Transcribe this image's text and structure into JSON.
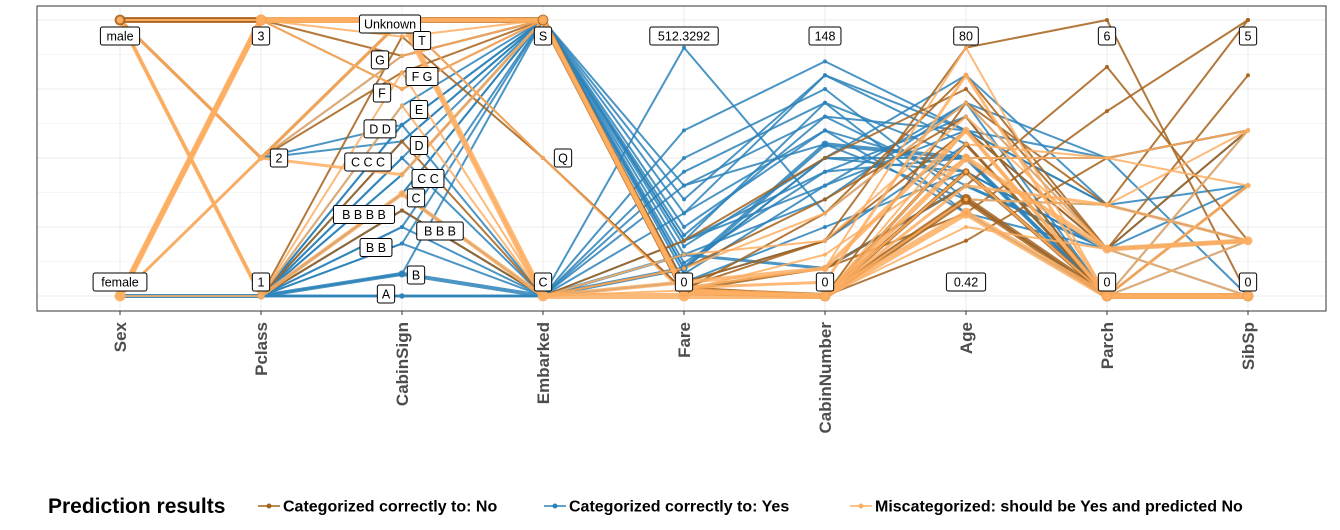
{
  "chart_data": {
    "type": "parallel-coordinates",
    "axes": [
      "Sex",
      "Pclass",
      "CabinSign",
      "Embarked",
      "Fare",
      "CabinNumber",
      "Age",
      "Parch",
      "SibSp"
    ],
    "axis_levels": {
      "Sex": [
        {
          "label": "male",
          "v": 1.0
        },
        {
          "label": "female",
          "v": 0.0
        }
      ],
      "Pclass": [
        {
          "label": "3",
          "v": 1.0
        },
        {
          "label": "2",
          "v": 0.5
        },
        {
          "label": "1",
          "v": 0.0
        }
      ],
      "CabinSign": [
        {
          "label": "Unknown",
          "v": 1.0
        },
        {
          "label": "T",
          "v": 0.94
        },
        {
          "label": "G",
          "v": 0.87
        },
        {
          "label": "F G",
          "v": 0.81
        },
        {
          "label": "F",
          "v": 0.75
        },
        {
          "label": "E",
          "v": 0.69
        },
        {
          "label": "D D",
          "v": 0.62
        },
        {
          "label": "D",
          "v": 0.56
        },
        {
          "label": "C C C",
          "v": 0.5
        },
        {
          "label": "C C",
          "v": 0.44
        },
        {
          "label": "C",
          "v": 0.37
        },
        {
          "label": "B B B B",
          "v": 0.31
        },
        {
          "label": "B B B",
          "v": 0.25
        },
        {
          "label": "B B",
          "v": 0.19
        },
        {
          "label": "B",
          "v": 0.08
        },
        {
          "label": "A",
          "v": 0.0
        }
      ],
      "Embarked": [
        {
          "label": "S",
          "v": 1.0
        },
        {
          "label": "Q",
          "v": 0.5
        },
        {
          "label": "C",
          "v": 0.0
        }
      ],
      "Fare": [
        {
          "label": "512.3292",
          "v": 1.0
        },
        {
          "label": "0",
          "v": 0.0
        }
      ],
      "CabinNumber": [
        {
          "label": "148",
          "v": 1.0
        },
        {
          "label": "0",
          "v": 0.0
        }
      ],
      "Age": [
        {
          "label": "80",
          "v": 1.0
        },
        {
          "label": "0.42",
          "v": 0.0
        }
      ],
      "Parch": [
        {
          "label": "6",
          "v": 1.0
        },
        {
          "label": "0",
          "v": 0.0
        }
      ],
      "SibSp": [
        {
          "label": "5",
          "v": 1.0
        },
        {
          "label": "0",
          "v": 0.0
        }
      ]
    },
    "series": [
      {
        "name": "Categorized correctly to: No",
        "color": "#a6611a"
      },
      {
        "name": "Categorized correctly to: Yes",
        "color": "#2b83ba"
      },
      {
        "name": "Miscategorized: should be Yes and predicted No",
        "color": "#fdae61"
      }
    ],
    "lines": [
      {
        "s": 0,
        "w": 6,
        "v": [
          1,
          1,
          1,
          1,
          0.02,
          0,
          0.35,
          0,
          0
        ]
      },
      {
        "s": 0,
        "w": 4,
        "v": [
          1,
          1,
          1,
          1,
          0.01,
          0,
          0.45,
          0,
          0
        ]
      },
      {
        "s": 0,
        "w": 3,
        "v": [
          1,
          0.5,
          1,
          1,
          0.03,
          0,
          0.55,
          0,
          0
        ]
      },
      {
        "s": 0,
        "w": 2,
        "v": [
          1,
          0.5,
          0.81,
          1,
          0.05,
          0.2,
          0.6,
          0.17,
          0.2
        ]
      },
      {
        "s": 0,
        "w": 2,
        "v": [
          1,
          1,
          0.87,
          1,
          0.03,
          0.1,
          0.3,
          0.67,
          1
        ]
      },
      {
        "s": 0,
        "w": 2,
        "v": [
          1,
          0,
          0.94,
          0.5,
          0.02,
          0.3,
          0.8,
          0.17,
          0.8
        ]
      },
      {
        "s": 0,
        "w": 2,
        "v": [
          1,
          0,
          0.31,
          0,
          0.1,
          0.35,
          0.65,
          0,
          0.4
        ]
      },
      {
        "s": 0,
        "w": 2,
        "v": [
          1,
          1,
          1,
          0.5,
          0.02,
          0,
          0.2,
          0.5,
          0.6
        ]
      },
      {
        "s": 0,
        "w": 2,
        "v": [
          1,
          1,
          0.75,
          1,
          0.03,
          0.2,
          0.9,
          1,
          0
        ]
      },
      {
        "s": 0,
        "w": 2,
        "v": [
          1,
          0.5,
          1,
          1,
          0.02,
          0.1,
          0.4,
          0.83,
          0.2
        ]
      },
      {
        "s": 0,
        "w": 2,
        "v": [
          1,
          1,
          1,
          1,
          0.01,
          0,
          0.7,
          0.33,
          1
        ]
      },
      {
        "s": 0,
        "w": 2,
        "v": [
          1,
          0,
          0.56,
          0,
          0.2,
          0.5,
          0.75,
          0.17,
          0.6
        ]
      },
      {
        "s": 1,
        "w": 4,
        "v": [
          0,
          0,
          0.08,
          0,
          0.1,
          0.55,
          0.5,
          0,
          0
        ]
      },
      {
        "s": 1,
        "w": 3,
        "v": [
          0,
          0,
          0.0,
          0.0,
          0.15,
          0.1,
          0.4,
          0.17,
          0.2
        ]
      },
      {
        "s": 1,
        "w": 2,
        "v": [
          0,
          0,
          0.37,
          1,
          0.2,
          0.4,
          0.6,
          0.33,
          0.4
        ]
      },
      {
        "s": 1,
        "w": 2,
        "v": [
          0,
          0,
          0.44,
          1,
          0.25,
          0.6,
          0.3,
          0.17,
          0.2
        ]
      },
      {
        "s": 1,
        "w": 2,
        "v": [
          0,
          0,
          0.5,
          0,
          0.9,
          0.3,
          0.7,
          0.5,
          0
        ]
      },
      {
        "s": 1,
        "w": 2,
        "v": [
          0,
          0,
          0.56,
          1,
          0.3,
          0.8,
          0.55,
          0,
          0.6
        ]
      },
      {
        "s": 1,
        "w": 2,
        "v": [
          0,
          0,
          0.62,
          1,
          0.1,
          0.5,
          0.45,
          0.17,
          0.2
        ]
      },
      {
        "s": 1,
        "w": 2,
        "v": [
          0,
          0,
          0.69,
          1,
          0.12,
          0.45,
          0.65,
          0,
          0
        ]
      },
      {
        "s": 1,
        "w": 2,
        "v": [
          0,
          0,
          0.25,
          0,
          0.5,
          0.75,
          0.35,
          0.33,
          0.2
        ]
      },
      {
        "s": 1,
        "w": 2,
        "v": [
          0,
          0,
          0.19,
          1,
          0.2,
          0.7,
          0.5,
          0,
          0.4
        ]
      },
      {
        "s": 1,
        "w": 2,
        "v": [
          0,
          0,
          0.31,
          0,
          0.4,
          0.65,
          0.4,
          0.17,
          0
        ]
      },
      {
        "s": 1,
        "w": 2,
        "v": [
          0,
          0,
          0.08,
          1,
          0.18,
          0.5,
          0.8,
          0.33,
          0.2
        ]
      },
      {
        "s": 1,
        "w": 2,
        "v": [
          0,
          0,
          0.37,
          0,
          0.6,
          0.85,
          0.6,
          0.5,
          0.6
        ]
      },
      {
        "s": 1,
        "w": 2,
        "v": [
          0,
          0,
          0.5,
          1,
          0.15,
          0.35,
          0.7,
          0,
          0.2
        ]
      },
      {
        "s": 1,
        "w": 2,
        "v": [
          0,
          0.5,
          0.87,
          1,
          0.05,
          0.25,
          0.45,
          0.17,
          0.2
        ]
      },
      {
        "s": 1,
        "w": 2,
        "v": [
          0,
          0.5,
          0.56,
          1,
          0.1,
          0.5,
          0.5,
          0,
          0
        ]
      },
      {
        "s": 1,
        "w": 2,
        "v": [
          0,
          0.5,
          0.62,
          1,
          0.08,
          0.4,
          0.7,
          0.17,
          0.6
        ]
      },
      {
        "s": 1,
        "w": 2,
        "v": [
          0,
          0,
          0.0,
          0,
          0.05,
          0.2,
          0.55,
          0,
          0
        ]
      },
      {
        "s": 1,
        "w": 2,
        "v": [
          0,
          0,
          0.19,
          0,
          0.3,
          0.6,
          0.45,
          0.17,
          0.4
        ]
      },
      {
        "s": 1,
        "w": 2,
        "v": [
          0,
          0,
          0.44,
          1,
          0.22,
          0.65,
          0.6,
          0.33,
          0.2
        ]
      },
      {
        "s": 1,
        "w": 2,
        "v": [
          1,
          0,
          0.37,
          1,
          0.4,
          0.55,
          0.35,
          0,
          0
        ]
      },
      {
        "s": 1,
        "w": 2,
        "v": [
          0,
          0,
          0.25,
          1,
          0.35,
          0.8,
          0.6,
          0.17,
          0.2
        ]
      },
      {
        "s": 1,
        "w": 2,
        "v": [
          1,
          0,
          0.62,
          0,
          0.2,
          0.45,
          0.5,
          0.5,
          0.6
        ]
      },
      {
        "s": 1,
        "w": 2,
        "v": [
          0,
          0,
          0.31,
          0,
          0.45,
          0.7,
          0.3,
          0,
          0.4
        ]
      },
      {
        "s": 2,
        "w": 6,
        "v": [
          0,
          1,
          1,
          0,
          0,
          0,
          0.3,
          0,
          0
        ]
      },
      {
        "s": 2,
        "w": 5,
        "v": [
          0,
          1,
          1,
          1,
          0.02,
          0,
          0.5,
          0.17,
          0.2
        ]
      },
      {
        "s": 2,
        "w": 4,
        "v": [
          1,
          0,
          0.37,
          0,
          0.05,
          0.1,
          0.6,
          0,
          0
        ]
      },
      {
        "s": 2,
        "w": 3,
        "v": [
          0,
          0.5,
          1,
          1,
          0.02,
          0,
          0.4,
          0.33,
          0.2
        ]
      },
      {
        "s": 2,
        "w": 3,
        "v": [
          1,
          0.5,
          0.44,
          1,
          0.03,
          0.05,
          0.8,
          0,
          0.4
        ]
      },
      {
        "s": 2,
        "w": 2,
        "v": [
          0,
          1,
          0.94,
          1,
          0.01,
          0,
          0.55,
          0.5,
          0.6
        ]
      },
      {
        "s": 2,
        "w": 2,
        "v": [
          0,
          0,
          0.81,
          0,
          0.1,
          0.3,
          0.7,
          0.17,
          0
        ]
      },
      {
        "s": 2,
        "w": 2,
        "v": [
          1,
          1,
          0.75,
          1,
          0.02,
          0,
          0.45,
          0,
          0.2
        ]
      },
      {
        "s": 2,
        "w": 2,
        "v": [
          0,
          1,
          1,
          0.5,
          0.01,
          0,
          0.35,
          0.33,
          0.6
        ]
      },
      {
        "s": 2,
        "w": 2,
        "v": [
          1,
          0,
          0.69,
          0,
          0.15,
          0.2,
          0.65,
          0.17,
          0.2
        ]
      },
      {
        "s": 2,
        "w": 2,
        "v": [
          0,
          1,
          1,
          1,
          0.03,
          0.1,
          0.9,
          0,
          0
        ]
      },
      {
        "s": 2,
        "w": 2,
        "v": [
          0,
          0.5,
          0.87,
          1,
          0.02,
          0.15,
          0.5,
          0.5,
          0.4
        ]
      },
      {
        "s": 2,
        "w": 2,
        "v": [
          1,
          1,
          1,
          1,
          0.01,
          0,
          0.25,
          0.17,
          0.2
        ]
      },
      {
        "s": 2,
        "w": 2,
        "v": [
          0,
          1,
          1,
          0,
          0.02,
          0,
          0.6,
          0,
          0.6
        ]
      }
    ],
    "legend": {
      "title": "Prediction results",
      "placement": "bottom"
    },
    "grid": true
  }
}
